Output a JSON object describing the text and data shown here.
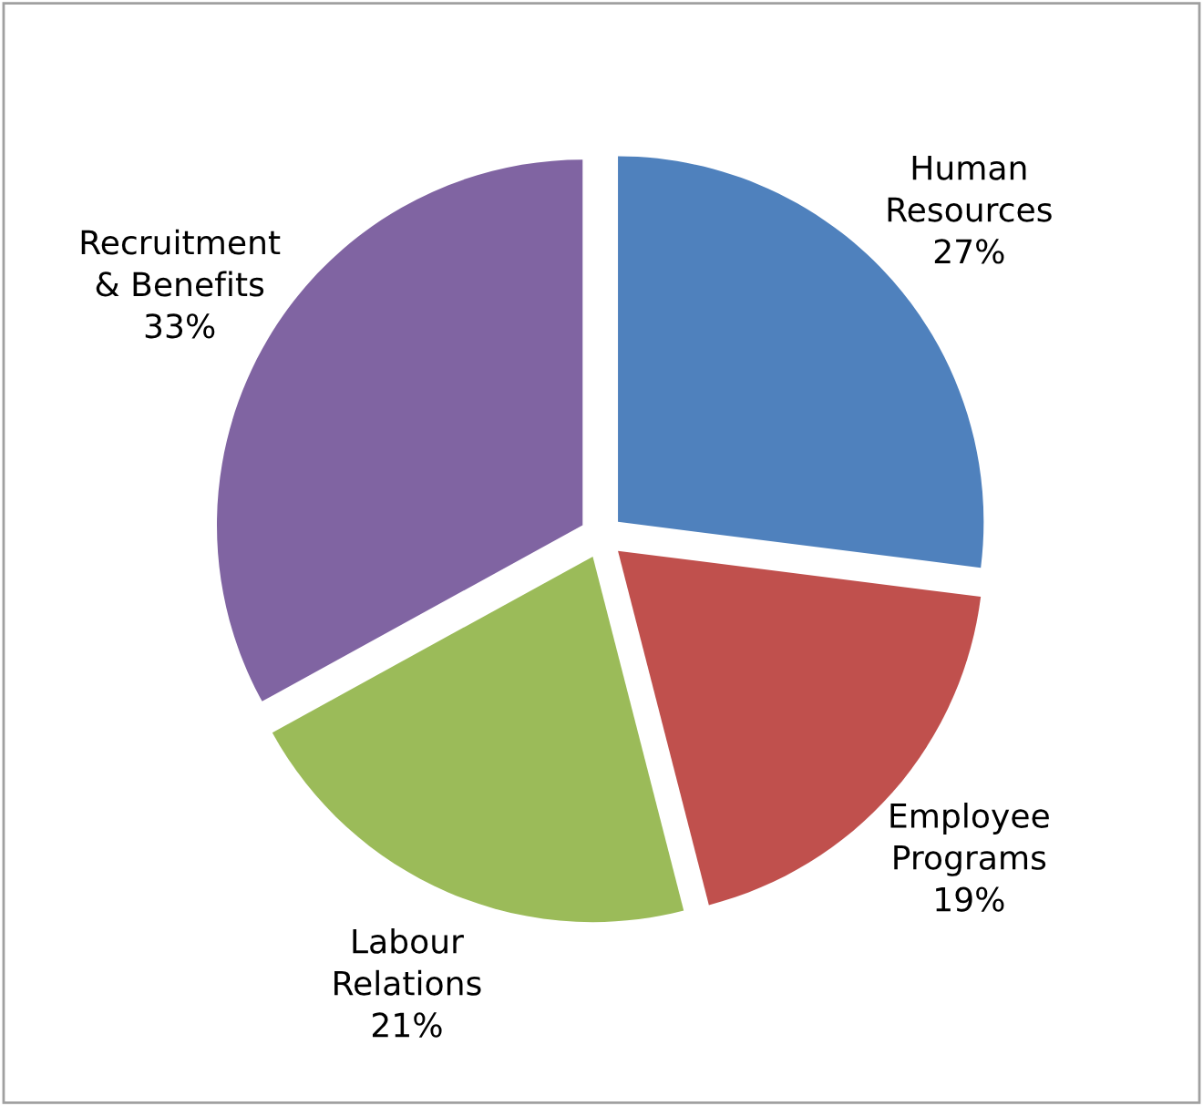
{
  "chart_data": {
    "type": "pie",
    "categories": [
      "Human\nResources",
      "Employee\nPrograms",
      "Labour\nRelations",
      "Recruitment\n& Benefits"
    ],
    "values": [
      27,
      19,
      21,
      33
    ],
    "colors": [
      "#4f81bd",
      "#c0504d",
      "#9bbb59",
      "#8064a2"
    ],
    "value_labels": [
      "27%",
      "19%",
      "21%",
      "33%"
    ]
  }
}
